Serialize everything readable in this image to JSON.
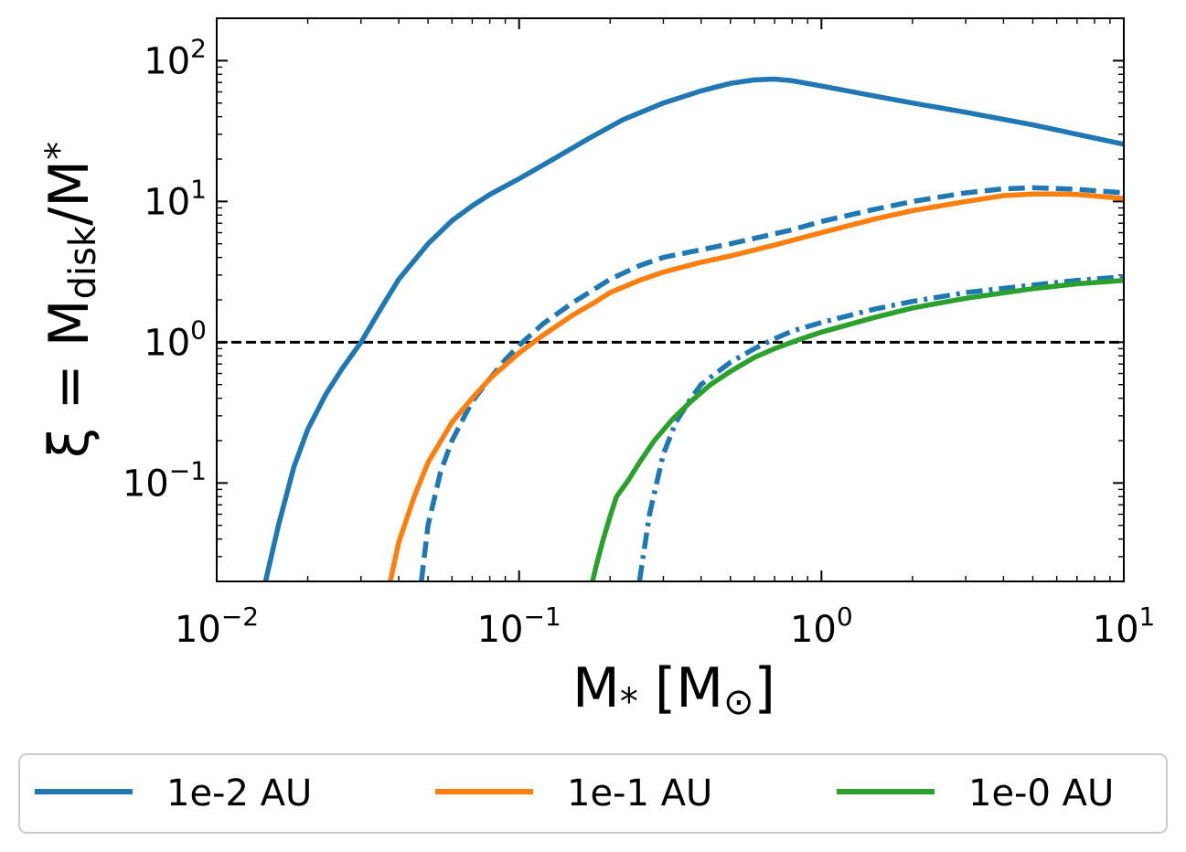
{
  "chart_data": {
    "type": "line",
    "xscale": "log",
    "yscale": "log",
    "xlim": [
      0.01,
      10
    ],
    "ylim": [
      0.02,
      200
    ],
    "xlabel": {
      "main": "M",
      "sub": "*",
      "unit_open": "[M",
      "unit_sub": "⊙",
      "unit_close": "]"
    },
    "ylabel": {
      "sym": "ξ",
      "eq": " = M",
      "sub1": "disk",
      "slash": "/M",
      "sub2": "*"
    },
    "x_ticks": [
      {
        "value": 0.01,
        "base": "10",
        "exp": "−2"
      },
      {
        "value": 0.1,
        "base": "10",
        "exp": "−1"
      },
      {
        "value": 1,
        "base": "10",
        "exp": "0"
      },
      {
        "value": 10,
        "base": "10",
        "exp": "1"
      }
    ],
    "y_ticks": [
      {
        "value": 0.1,
        "base": "10",
        "exp": "−1"
      },
      {
        "value": 1,
        "base": "10",
        "exp": "0"
      },
      {
        "value": 10,
        "base": "10",
        "exp": "1"
      },
      {
        "value": 100,
        "base": "10",
        "exp": "2"
      }
    ],
    "reference_line": {
      "y": 1,
      "color": "#000000",
      "style": "dashed"
    },
    "legend": {
      "placement": "bottom",
      "entries": [
        {
          "label": "1e-2 AU",
          "color": "#1f77b4"
        },
        {
          "label": "1e-1 AU",
          "color": "#ff7f0e"
        },
        {
          "label": "1e-0 AU",
          "color": "#2ca02c"
        }
      ]
    },
    "series": [
      {
        "name": "1e-2 AU",
        "color": "#1f77b4",
        "style": "solid",
        "x": [
          0.0145,
          0.016,
          0.018,
          0.02,
          0.023,
          0.026,
          0.03,
          0.035,
          0.04,
          0.05,
          0.06,
          0.07,
          0.08,
          0.1,
          0.13,
          0.17,
          0.22,
          0.3,
          0.4,
          0.5,
          0.6,
          0.7,
          0.8,
          1.0,
          1.5,
          2,
          3,
          5,
          7,
          10
        ],
        "y": [
          0.02,
          0.05,
          0.13,
          0.24,
          0.43,
          0.65,
          1.0,
          1.75,
          2.8,
          5.0,
          7.3,
          9.3,
          11.2,
          14.5,
          20.0,
          28.0,
          38.0,
          50.0,
          61.0,
          69.0,
          73.0,
          74.0,
          72.0,
          66.0,
          56.0,
          50.0,
          43.0,
          35.0,
          30.0,
          25.5
        ]
      },
      {
        "name": "",
        "color": "#1f77b4",
        "style": "dashed",
        "x": [
          0.0475,
          0.05,
          0.055,
          0.06,
          0.065,
          0.07,
          0.08,
          0.09,
          0.1,
          0.12,
          0.15,
          0.2,
          0.25,
          0.3,
          0.5,
          0.8,
          1.0,
          1.5,
          2,
          3,
          4,
          5,
          7,
          10
        ],
        "y": [
          0.02,
          0.05,
          0.12,
          0.2,
          0.28,
          0.38,
          0.55,
          0.75,
          0.95,
          1.35,
          1.9,
          2.8,
          3.5,
          4.0,
          5.0,
          6.3,
          7.2,
          8.8,
          10.0,
          11.5,
          12.3,
          12.5,
          12.2,
          11.5
        ]
      },
      {
        "name": "1e-1 AU",
        "color": "#ff7f0e",
        "style": "solid",
        "x": [
          0.0375,
          0.04,
          0.045,
          0.05,
          0.06,
          0.07,
          0.08,
          0.1,
          0.12,
          0.15,
          0.18,
          0.2,
          0.25,
          0.3,
          0.4,
          0.5,
          0.7,
          1.0,
          1.5,
          2,
          3,
          4,
          5,
          6,
          7,
          10
        ],
        "y": [
          0.02,
          0.038,
          0.08,
          0.14,
          0.27,
          0.4,
          0.55,
          0.84,
          1.12,
          1.55,
          1.95,
          2.25,
          2.75,
          3.15,
          3.7,
          4.1,
          4.9,
          6.0,
          7.5,
          8.6,
          10.0,
          11.0,
          11.3,
          11.3,
          11.2,
          10.5
        ]
      },
      {
        "name": "",
        "color": "#1f77b4",
        "style": "dashdot",
        "x": [
          0.25,
          0.27,
          0.3,
          0.33,
          0.37,
          0.4,
          0.5,
          0.6,
          0.7,
          0.8,
          1.0,
          1.5,
          2,
          3,
          5,
          7,
          10
        ],
        "y": [
          0.02,
          0.06,
          0.16,
          0.27,
          0.4,
          0.5,
          0.72,
          0.9,
          1.06,
          1.2,
          1.38,
          1.72,
          1.95,
          2.25,
          2.55,
          2.75,
          2.92
        ]
      },
      {
        "name": "1e-0 AU",
        "color": "#2ca02c",
        "style": "solid",
        "x": [
          0.175,
          0.18,
          0.19,
          0.2,
          0.21,
          0.23,
          0.25,
          0.28,
          0.32,
          0.37,
          0.43,
          0.5,
          0.6,
          0.7,
          0.85,
          1.0,
          1.5,
          2,
          3,
          5,
          7,
          10
        ],
        "y": [
          0.02,
          0.026,
          0.04,
          0.058,
          0.08,
          0.105,
          0.14,
          0.2,
          0.28,
          0.38,
          0.5,
          0.62,
          0.78,
          0.9,
          1.05,
          1.18,
          1.5,
          1.75,
          2.05,
          2.4,
          2.6,
          2.75
        ]
      }
    ]
  }
}
